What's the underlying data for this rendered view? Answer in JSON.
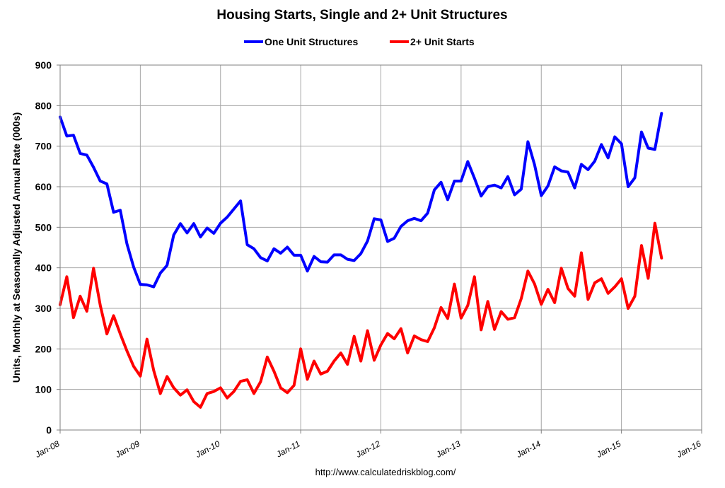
{
  "chart_data": {
    "type": "line",
    "title": "Housing Starts, Single and 2+ Unit Structures",
    "ylabel": "Units, Monthly at Seasonally Adjusted Annual Rate (000s)",
    "xlabel": "",
    "ylim": [
      0,
      900
    ],
    "yticks": [
      0,
      100,
      200,
      300,
      400,
      500,
      600,
      700,
      800,
      900
    ],
    "x_start": "Jan-08",
    "xticks": [
      "Jan-08",
      "Jan-09",
      "Jan-10",
      "Jan-11",
      "Jan-12",
      "Jan-13",
      "Jan-14",
      "Jan-15",
      "Jan-16"
    ],
    "grid": true,
    "legend_position": "top",
    "series": [
      {
        "name": "One Unit Structures",
        "color": "#0000ff",
        "values": [
          772,
          725,
          727,
          682,
          678,
          648,
          614,
          607,
          537,
          542,
          459,
          402,
          359,
          358,
          353,
          387,
          406,
          481,
          509,
          486,
          509,
          476,
          498,
          485,
          510,
          525,
          545,
          565,
          457,
          447,
          425,
          417,
          447,
          436,
          451,
          431,
          431,
          392,
          428,
          415,
          414,
          432,
          432,
          421,
          418,
          435,
          466,
          521,
          518,
          465,
          473,
          502,
          516,
          522,
          516,
          535,
          592,
          611,
          568,
          614,
          614,
          662,
          621,
          577,
          600,
          604,
          597,
          625,
          580,
          594,
          711,
          654,
          578,
          602,
          649,
          639,
          636,
          597,
          655,
          642,
          663,
          704,
          671,
          723,
          706,
          600,
          622,
          735,
          695,
          692,
          781
        ]
      },
      {
        "name": "2+ Unit Starts",
        "color": "#ff0000",
        "values": [
          309,
          378,
          277,
          330,
          293,
          399,
          308,
          237,
          282,
          237,
          195,
          157,
          133,
          224,
          147,
          90,
          132,
          104,
          86,
          99,
          70,
          56,
          90,
          95,
          104,
          79,
          95,
          120,
          124,
          90,
          119,
          180,
          145,
          104,
          92,
          110,
          200,
          125,
          170,
          138,
          145,
          170,
          190,
          162,
          231,
          170,
          245,
          172,
          210,
          238,
          225,
          250,
          190,
          232,
          223,
          218,
          252,
          302,
          275,
          360,
          276,
          307,
          378,
          247,
          317,
          248,
          292,
          273,
          277,
          324,
          392,
          360,
          310,
          347,
          314,
          399,
          349,
          330,
          437,
          322,
          363,
          373,
          337,
          353,
          373,
          300,
          330,
          455,
          374,
          510,
          424
        ]
      }
    ],
    "source": "http://www.calculatedriskblog.com/"
  }
}
